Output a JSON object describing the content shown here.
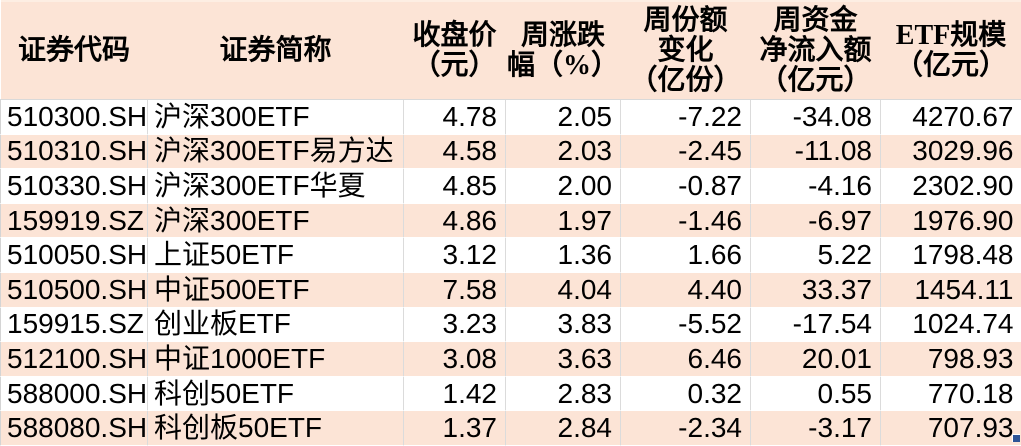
{
  "colors": {
    "header-bg": "#fce4d6",
    "row-bg": "#ffffff",
    "row-alt-bg": "#fce4d6",
    "grid": "#d9d9d9",
    "text": "#000000",
    "fill-handle": "#2e5597"
  },
  "chart_data": {
    "type": "table",
    "columns": [
      "证券代码",
      "证券简称",
      "收盘价（元）",
      "周涨跌幅（%）",
      "周份额变化（亿份）",
      "周资金净流入额（亿元）",
      "ETF规模（亿元）"
    ],
    "column_keys": [
      "code",
      "name",
      "close-price",
      "weekly-change-pct",
      "weekly-share-change",
      "weekly-net-inflow",
      "etf-scale"
    ],
    "header_lines": [
      [
        "证券代码"
      ],
      [
        "证券简称"
      ],
      [
        "收盘价",
        "（元）"
      ],
      [
        "周涨跌",
        "幅（%）"
      ],
      [
        "周份额",
        "变化",
        "（亿份）"
      ],
      [
        "周资金",
        "净流入额",
        "（亿元）"
      ],
      [
        "ETF规模",
        "（亿元）"
      ]
    ],
    "rows": [
      [
        "510300.SH",
        "沪深300ETF",
        "4.78",
        "2.05",
        "-7.22",
        "-34.08",
        "4270.67"
      ],
      [
        "510310.SH",
        "沪深300ETF易方达",
        "4.58",
        "2.03",
        "-2.45",
        "-11.08",
        "3029.96"
      ],
      [
        "510330.SH",
        "沪深300ETF华夏",
        "4.85",
        "2.00",
        "-0.87",
        "-4.16",
        "2302.90"
      ],
      [
        "159919.SZ",
        "沪深300ETF",
        "4.86",
        "1.97",
        "-1.46",
        "-6.97",
        "1976.90"
      ],
      [
        "510050.SH",
        "上证50ETF",
        "3.12",
        "1.36",
        "1.66",
        "5.22",
        "1798.48"
      ],
      [
        "510500.SH",
        "中证500ETF",
        "7.58",
        "4.04",
        "4.40",
        "33.37",
        "1454.11"
      ],
      [
        "159915.SZ",
        "创业板ETF",
        "3.23",
        "3.83",
        "-5.52",
        "-17.54",
        "1024.74"
      ],
      [
        "512100.SH",
        "中证1000ETF",
        "3.08",
        "3.63",
        "6.46",
        "20.01",
        "798.93"
      ],
      [
        "588000.SH",
        "科创50ETF",
        "1.42",
        "2.83",
        "0.32",
        "0.55",
        "770.18"
      ],
      [
        "588080.SH",
        "科创板50ETF",
        "1.37",
        "2.84",
        "-2.34",
        "-3.17",
        "707.93"
      ]
    ]
  }
}
